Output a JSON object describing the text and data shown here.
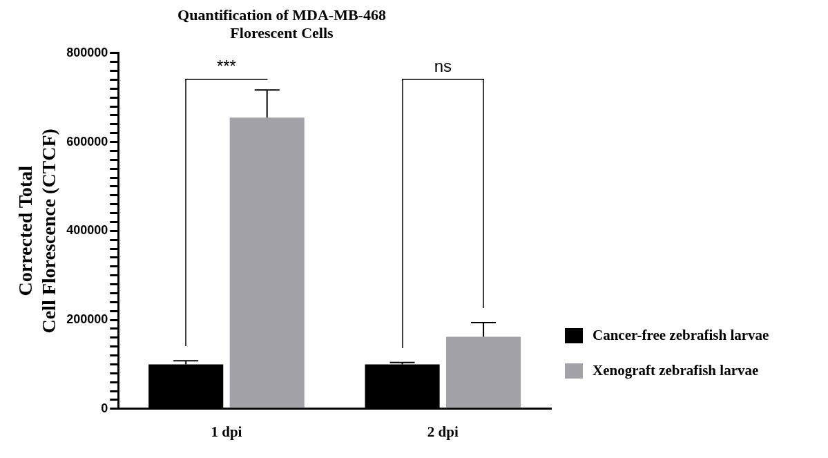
{
  "chart_data": {
    "type": "bar",
    "title": "Quantification of MDA-MB-468\nFlorescent Cells",
    "ylabel": "Corrected Total\nCell Florescence (CTCF)",
    "categories": [
      "1 dpi",
      "2 dpi"
    ],
    "series": [
      {
        "name": "Cancer-free zebrafish larvae",
        "color": "#000000",
        "values": [
          100000,
          100000
        ],
        "errors": [
          8000,
          4000
        ]
      },
      {
        "name": "Xenograft zebrafish larvae",
        "color": "#a3a2a8",
        "values": [
          655000,
          162000
        ],
        "errors": [
          62000,
          32000
        ]
      }
    ],
    "ylim": [
      0,
      800000
    ],
    "yticks": [
      0,
      {
        "value": 20000,
        "label": null
      },
      {
        "value": 40000,
        "label": null
      },
      {
        "value": 60000,
        "label": null
      },
      {
        "value": 80000,
        "label": null
      },
      {
        "value": 100000,
        "label": null
      },
      {
        "value": 120000,
        "label": null
      },
      {
        "value": 140000,
        "label": null
      },
      {
        "value": 160000,
        "label": null
      },
      {
        "value": 180000,
        "label": null
      },
      200000,
      {
        "value": 220000,
        "label": null
      },
      {
        "value": 240000,
        "label": null
      },
      {
        "value": 260000,
        "label": null
      },
      {
        "value": 280000,
        "label": null
      },
      {
        "value": 300000,
        "label": null
      },
      {
        "value": 320000,
        "label": null
      },
      {
        "value": 340000,
        "label": null
      },
      {
        "value": 360000,
        "label": null
      },
      {
        "value": 380000,
        "label": null
      },
      400000,
      {
        "value": 420000,
        "label": null
      },
      {
        "value": 440000,
        "label": null
      },
      {
        "value": 460000,
        "label": null
      },
      {
        "value": 480000,
        "label": null
      },
      {
        "value": 500000,
        "label": null
      },
      {
        "value": 520000,
        "label": null
      },
      {
        "value": 540000,
        "label": null
      },
      {
        "value": 560000,
        "label": null
      },
      {
        "value": 580000,
        "label": null
      },
      600000,
      {
        "value": 620000,
        "label": null
      },
      {
        "value": 640000,
        "label": null
      },
      {
        "value": 660000,
        "label": null
      },
      {
        "value": 680000,
        "label": null
      },
      {
        "value": 700000,
        "label": null
      },
      {
        "value": 720000,
        "label": null
      },
      {
        "value": 740000,
        "label": null
      },
      {
        "value": 760000,
        "label": null
      },
      {
        "value": 780000,
        "label": null
      },
      800000
    ],
    "annotations": [
      "***",
      "ns"
    ],
    "grid": false,
    "legend": "right"
  }
}
